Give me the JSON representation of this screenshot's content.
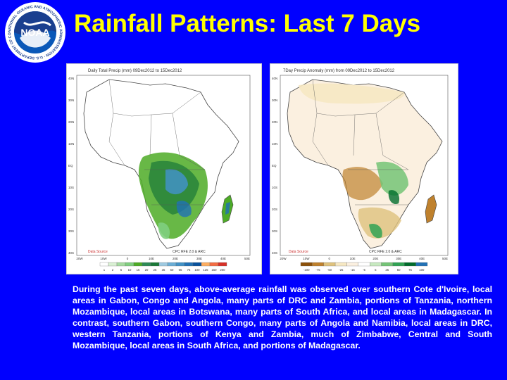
{
  "title": "Rainfall Patterns: Last 7 Days",
  "logo": {
    "text": "NOAA",
    "ring_text": "NATIONAL OCEANIC AND ATMOSPHERIC ADMINISTRATION · U.S. DEPARTMENT OF COMMERCE"
  },
  "maps": {
    "left": {
      "header": "Daily Total Precip (mm) 09Dec2012 to 15Dec2012",
      "lat_labels": [
        "40N",
        "30N",
        "20N",
        "10N",
        "EQ",
        "10S",
        "20S",
        "30S",
        "40S"
      ],
      "lon_labels": [
        "20W",
        "10W",
        "0",
        "10E",
        "20E",
        "30E",
        "40E",
        "50E"
      ],
      "footer_left": "Data Source",
      "footer_right": "CPC RFE 2.0 & ARC",
      "legend_values": [
        "1",
        "2",
        "5",
        "10",
        "15",
        "20",
        "25",
        "35",
        "50",
        "65",
        "75",
        "100",
        "125",
        "150",
        "200"
      ],
      "legend_colors": [
        "#ffffff",
        "#d9f0d3",
        "#a6dba0",
        "#7fcf7f",
        "#4dac26",
        "#2e8b57",
        "#1a7837",
        "#9ecae1",
        "#6baed6",
        "#4292c6",
        "#2171b5",
        "#08519c",
        "#fdae61",
        "#f46d43",
        "#d73027"
      ]
    },
    "right": {
      "header": "7Day Precip Anomaly (mm) from 09Dec2012 to 15Dec2012",
      "lat_labels": [
        "40N",
        "30N",
        "20N",
        "10N",
        "EQ",
        "10S",
        "20S",
        "30S",
        "40S"
      ],
      "lon_labels": [
        "20W",
        "10W",
        "0",
        "10E",
        "20E",
        "30E",
        "40E",
        "50E"
      ],
      "footer_left": "Data Source",
      "footer_right": "CPC RFE 2.0 & ARC",
      "legend_values": [
        "-100",
        "-75",
        "-50",
        "-25",
        "-15",
        "-5",
        "5",
        "25",
        "50",
        "75",
        "100"
      ],
      "legend_colors": [
        "#8c510a",
        "#bf812d",
        "#dfc27d",
        "#f6e8c3",
        "#fbf0e0",
        "#ffffff",
        "#c7e9c0",
        "#74c476",
        "#31a354",
        "#006d2c",
        "#2171b5"
      ]
    }
  },
  "caption": "During the past seven days, above-average rainfall was observed over southern Cote d'Ivoire, local areas in Gabon, Congo and Angola, many parts of DRC and Zambia, portions of Tanzania, northern Mozambique, local areas in Botswana, many parts of South Africa, and local areas in Madagascar. In contrast, southern Gabon, southern Congo, many parts of Angola and Namibia, local areas in DRC, western Tanzania, portions of Kenya and Zambia, much of Zimbabwe, Central and South Mozambique, local areas in South Africa, and portions of Madagascar.",
  "colors": {
    "background": "#0000ff",
    "title": "#ffff00",
    "caption": "#ffffff"
  }
}
